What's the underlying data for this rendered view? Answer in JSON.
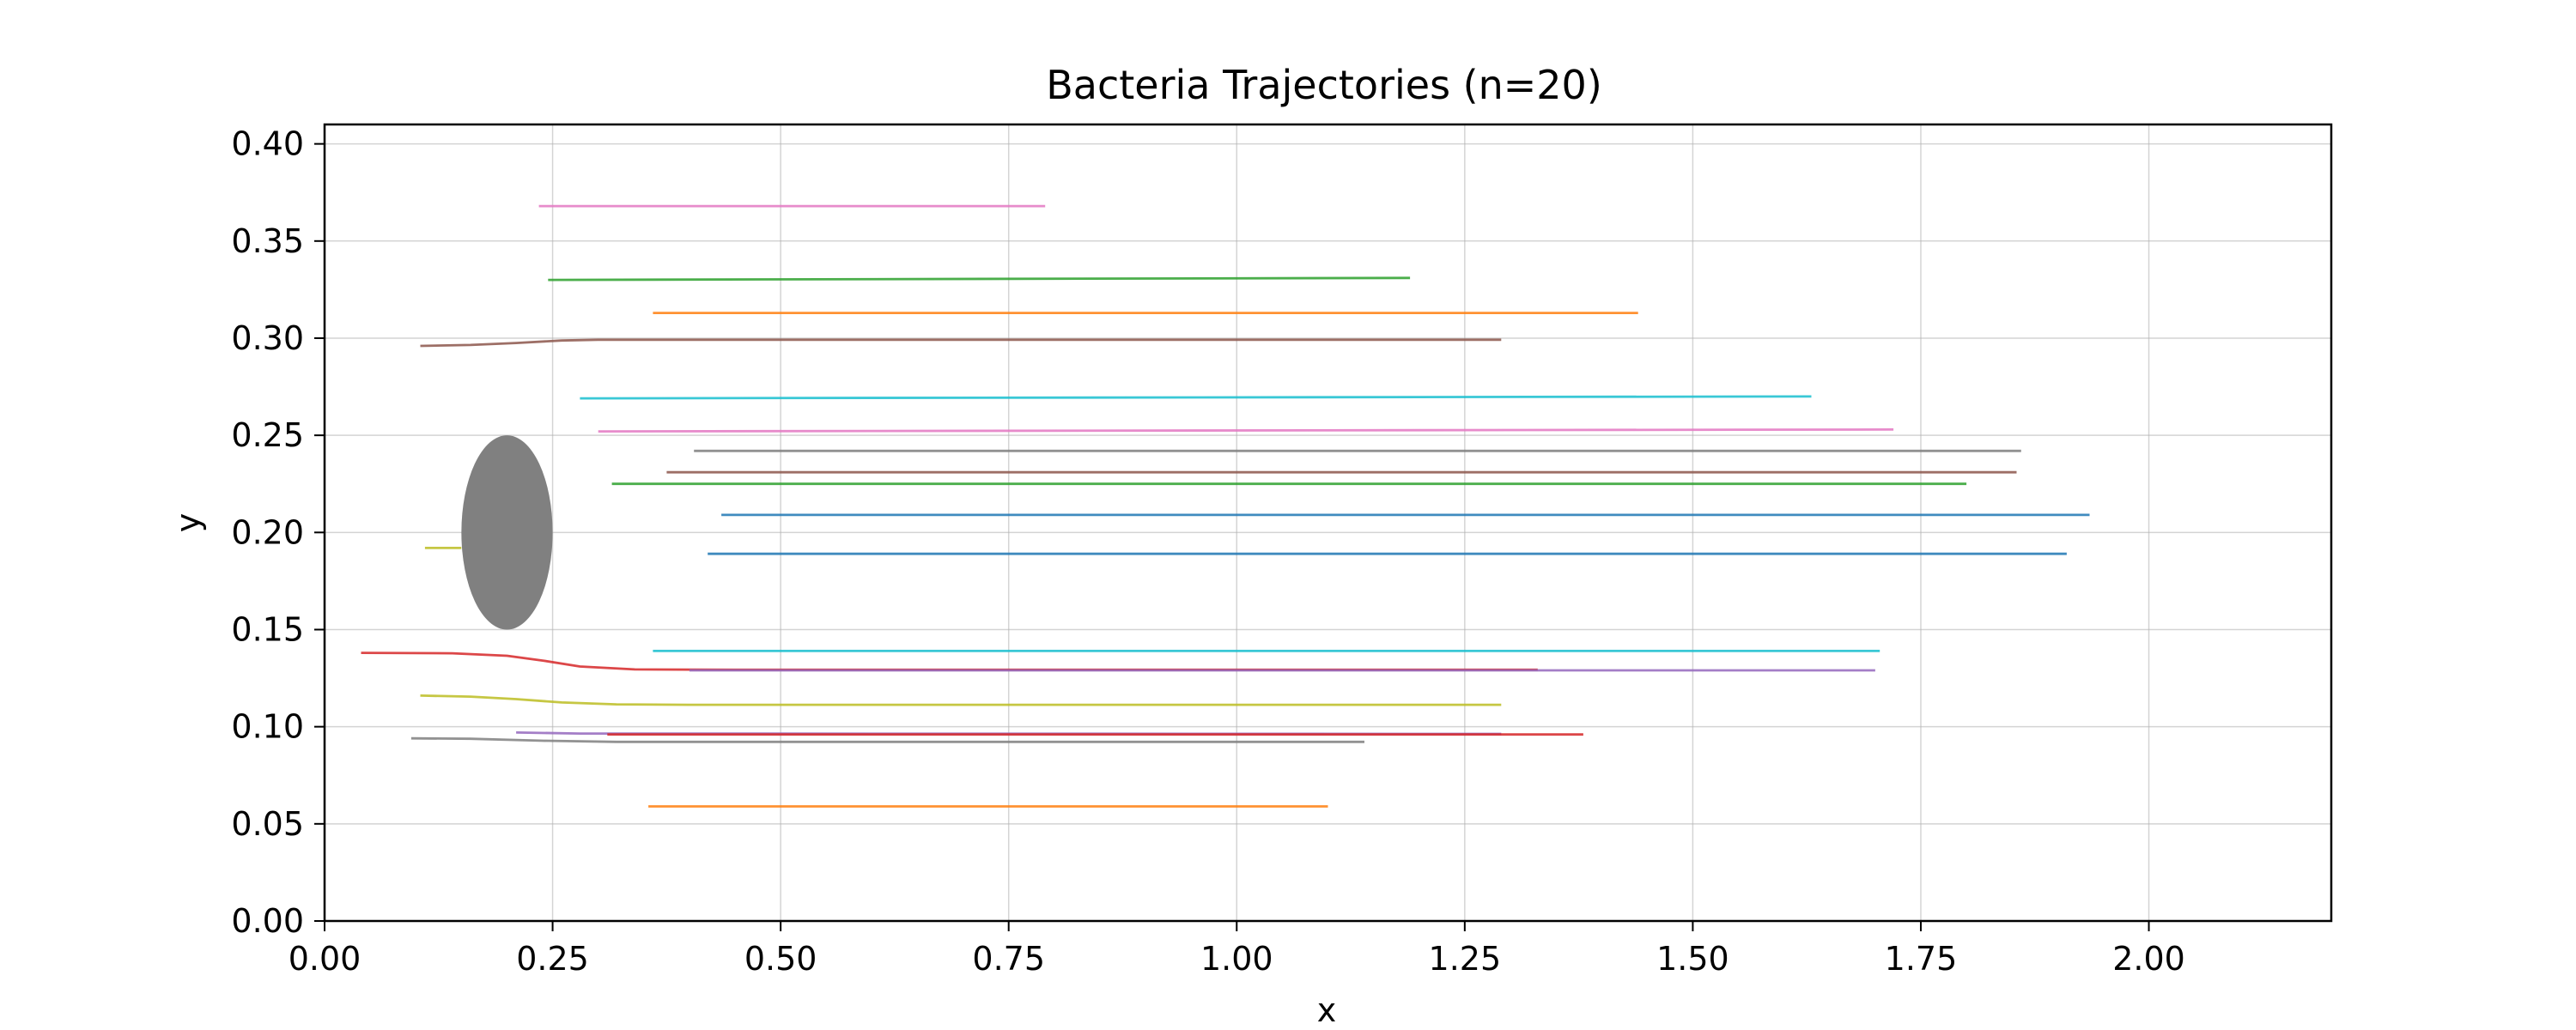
{
  "chart_data": {
    "type": "line",
    "title": "Bacteria Trajectories (n=20)",
    "xlabel": "x",
    "ylabel": "y",
    "xlim": [
      0.0,
      2.2
    ],
    "ylim": [
      0.0,
      0.41
    ],
    "x_ticks": [
      "0.00",
      "0.25",
      "0.50",
      "0.75",
      "1.00",
      "1.25",
      "1.50",
      "1.75",
      "2.00"
    ],
    "y_ticks": [
      "0.00",
      "0.05",
      "0.10",
      "0.15",
      "0.20",
      "0.25",
      "0.30",
      "0.35",
      "0.40"
    ],
    "grid": true,
    "obstacle": {
      "shape": "ellipse",
      "center": [
        0.2,
        0.2
      ],
      "width": 0.1,
      "height": 0.1,
      "color": "#808080"
    },
    "series": [
      {
        "color": "#e377c2",
        "x": [
          0.235,
          0.79
        ],
        "y": [
          0.368,
          0.368
        ]
      },
      {
        "color": "#2ca02c",
        "x": [
          0.245,
          1.19
        ],
        "y": [
          0.33,
          0.331
        ]
      },
      {
        "color": "#ff7f0e",
        "x": [
          0.36,
          1.44
        ],
        "y": [
          0.313,
          0.313
        ]
      },
      {
        "color": "#8c564b",
        "x": [
          0.105,
          0.16,
          0.21,
          0.26,
          0.3,
          1.29
        ],
        "y": [
          0.296,
          0.2965,
          0.2975,
          0.2988,
          0.2992,
          0.2992
        ]
      },
      {
        "color": "#17becf",
        "x": [
          0.28,
          1.63
        ],
        "y": [
          0.269,
          0.27
        ]
      },
      {
        "color": "#e377c2",
        "x": [
          0.3,
          1.72
        ],
        "y": [
          0.252,
          0.253
        ]
      },
      {
        "color": "#7f7f7f",
        "x": [
          0.405,
          1.86
        ],
        "y": [
          0.242,
          0.242
        ]
      },
      {
        "color": "#8c564b",
        "x": [
          0.375,
          1.855
        ],
        "y": [
          0.231,
          0.231
        ]
      },
      {
        "color": "#2ca02c",
        "x": [
          0.315,
          1.8
        ],
        "y": [
          0.225,
          0.225
        ]
      },
      {
        "color": "#1f77b4",
        "x": [
          0.435,
          1.935
        ],
        "y": [
          0.209,
          0.209
        ]
      },
      {
        "color": "#bcbd22",
        "x": [
          0.11,
          0.15
        ],
        "y": [
          0.192,
          0.192
        ]
      },
      {
        "color": "#1f77b4",
        "x": [
          0.42,
          1.91
        ],
        "y": [
          0.189,
          0.189
        ]
      },
      {
        "color": "#17becf",
        "x": [
          0.36,
          1.705
        ],
        "y": [
          0.139,
          0.139
        ]
      },
      {
        "color": "#d62728",
        "x": [
          0.04,
          0.14,
          0.2,
          0.24,
          0.28,
          0.34,
          0.45,
          1.33
        ],
        "y": [
          0.138,
          0.1378,
          0.1365,
          0.134,
          0.131,
          0.1295,
          0.1293,
          0.1293
        ]
      },
      {
        "color": "#9467bd",
        "x": [
          0.4,
          1.7
        ],
        "y": [
          0.129,
          0.129
        ]
      },
      {
        "color": "#bcbd22",
        "x": [
          0.105,
          0.16,
          0.21,
          0.26,
          0.32,
          0.4,
          1.29
        ],
        "y": [
          0.116,
          0.1155,
          0.1142,
          0.1125,
          0.1115,
          0.1113,
          0.1113
        ]
      },
      {
        "color": "#9467bd",
        "x": [
          0.21,
          0.28,
          1.29
        ],
        "y": [
          0.097,
          0.0965,
          0.0963
        ]
      },
      {
        "color": "#d62728",
        "x": [
          0.31,
          1.38
        ],
        "y": [
          0.096,
          0.096
        ]
      },
      {
        "color": "#7f7f7f",
        "x": [
          0.095,
          0.16,
          0.24,
          0.32,
          1.14
        ],
        "y": [
          0.094,
          0.0938,
          0.0928,
          0.0922,
          0.0922
        ]
      },
      {
        "color": "#ff7f0e",
        "x": [
          0.355,
          1.1
        ],
        "y": [
          0.059,
          0.059
        ]
      }
    ]
  }
}
